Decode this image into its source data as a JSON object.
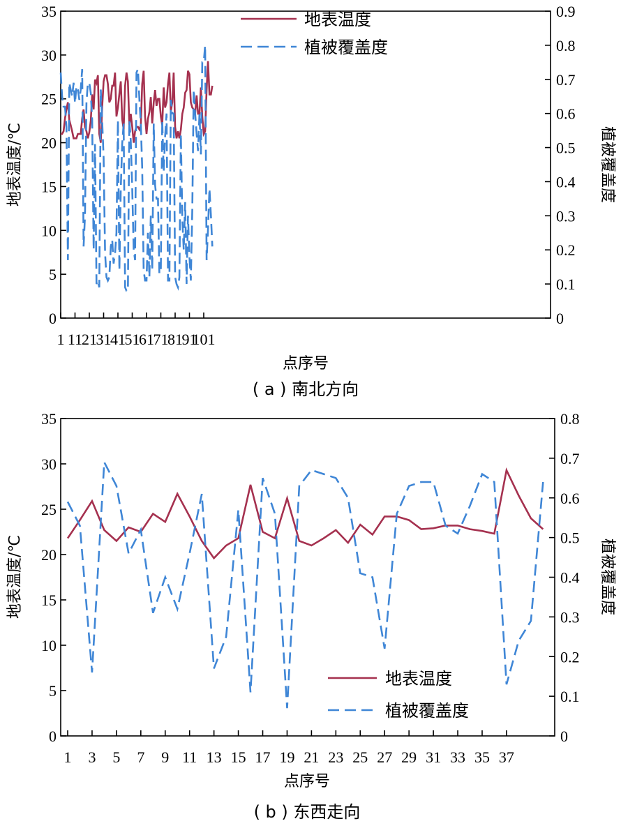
{
  "chart_data": [
    {
      "type": "line",
      "caption": "( a ) 南北方向",
      "xlabel": "点序号",
      "ylabel_left": "地表温度/℃",
      "ylabel_right": "植被覆盖度",
      "xlim": [
        1,
        107
      ],
      "ylim_left": [
        0,
        35
      ],
      "ylim_right": [
        0,
        0.9
      ],
      "xticks": [
        1,
        11,
        21,
        31,
        41,
        51,
        61,
        71,
        81,
        91,
        101
      ],
      "yticks_left": [
        0,
        5,
        10,
        15,
        20,
        25,
        30,
        35
      ],
      "yticks_right": [
        0,
        0.1,
        0.2,
        0.3,
        0.4,
        0.5,
        0.6,
        0.7,
        0.8,
        0.9
      ],
      "legend_position": "top-center",
      "colors": {
        "temperature": "#a5314f",
        "vegetation": "#3f86d6"
      },
      "series": [
        {
          "name": "地表温度",
          "axis": "left",
          "style": "solid",
          "values": [
            21.0,
            21.0,
            21.3,
            22.8,
            23.8,
            24.6,
            22.6,
            22.0,
            21.3,
            20.5,
            20.5,
            20.5,
            21.0,
            21.0,
            21.0,
            22.8,
            23.8,
            21.8,
            21.3,
            20.5,
            21.2,
            22.5,
            25.5,
            23.8,
            27.2,
            26.8,
            27.7,
            21.0,
            20.0,
            24.0,
            27.0,
            27.7,
            27.7,
            26.7,
            24.6,
            25.0,
            26.5,
            26.5,
            28.0,
            23.0,
            24.0,
            25.6,
            27.0,
            22.7,
            21.5,
            26.5,
            28.0,
            27.0,
            22.0,
            23.3,
            21.8,
            20.0,
            21.3,
            21.8,
            21.8,
            21.5,
            22.0,
            26.7,
            28.2,
            23.0,
            21.0,
            22.7,
            23.5,
            25.2,
            22.2,
            24.6,
            26.0,
            24.2,
            25.0,
            25.0,
            23.0,
            22.0,
            26.3,
            24.0,
            24.6,
            26.7,
            28.0,
            23.6,
            24.6,
            28.0,
            21.8,
            20.5,
            21.3,
            20.5,
            21.5,
            23.3,
            24.0,
            25.7,
            26.0,
            28.2,
            27.8,
            24.6,
            24.0,
            23.8,
            23.3,
            25.4,
            23.3,
            23.3,
            26.3,
            23.0,
            21.0,
            21.3,
            26.0,
            29.3,
            25.5,
            25.5,
            26.5
          ]
        },
        {
          "name": "植被覆盖度",
          "axis": "right",
          "style": "dashed",
          "values": [
            0.72,
            0.65,
            0.62,
            0.62,
            0.56,
            0.17,
            0.69,
            0.67,
            0.65,
            0.69,
            0.63,
            0.68,
            0.67,
            0.64,
            0.67,
            0.73,
            0.21,
            0.3,
            0.63,
            0.69,
            0.69,
            0.66,
            0.58,
            0.2,
            0.51,
            0.1,
            0.11,
            0.09,
            0.67,
            0.58,
            0.47,
            0.19,
            0.12,
            0.11,
            0.12,
            0.21,
            0.23,
            0.16,
            0.19,
            0.25,
            0.58,
            0.14,
            0.38,
            0.51,
            0.57,
            0.09,
            0.08,
            0.08,
            0.58,
            0.52,
            0.38,
            0.2,
            0.17,
            0.72,
            0.73,
            0.64,
            0.57,
            0.44,
            0.14,
            0.11,
            0.11,
            0.25,
            0.12,
            0.3,
            0.14,
            0.57,
            0.39,
            0.35,
            0.35,
            0.13,
            0.14,
            0.58,
            0.43,
            0.53,
            0.6,
            0.11,
            0.11,
            0.64,
            0.6,
            0.6,
            0.12,
            0.1,
            0.09,
            0.12,
            0.54,
            0.29,
            0.2,
            0.34,
            0.1,
            0.3,
            0.18,
            0.11,
            0.32,
            0.67,
            0.6,
            0.54,
            0.49,
            0.6,
            0.48,
            0.75,
            0.75,
            0.8,
            0.17,
            0.26,
            0.38,
            0.3,
            0.21
          ]
        }
      ]
    },
    {
      "type": "line",
      "caption": "( b ) 东西走向",
      "xlabel": "点序号",
      "ylabel_left": "地表温度/℃",
      "ylabel_right": "植被覆盖度",
      "xlim": [
        1,
        40
      ],
      "ylim_left": [
        0,
        35
      ],
      "ylim_right": [
        0,
        0.8
      ],
      "xticks": [
        1,
        3,
        5,
        7,
        9,
        11,
        13,
        15,
        17,
        19,
        21,
        23,
        25,
        27,
        29,
        31,
        33,
        35,
        37
      ],
      "yticks_left": [
        0,
        5,
        10,
        15,
        20,
        25,
        30,
        35
      ],
      "yticks_right": [
        0,
        0.1,
        0.2,
        0.3,
        0.4,
        0.5,
        0.6,
        0.7,
        0.8
      ],
      "legend_position": "bottom-center",
      "colors": {
        "temperature": "#a5314f",
        "vegetation": "#3f86d6"
      },
      "series": [
        {
          "name": "地表温度",
          "axis": "left",
          "style": "solid",
          "values": [
            21.8,
            23.8,
            25.9,
            22.7,
            21.5,
            23.0,
            22.5,
            24.5,
            23.6,
            26.7,
            24.2,
            21.5,
            19.6,
            21.0,
            21.8,
            27.7,
            22.5,
            21.8,
            26.2,
            21.5,
            21.0,
            21.8,
            22.7,
            21.3,
            23.3,
            22.2,
            24.2,
            24.2,
            23.8,
            22.8,
            22.9,
            23.2,
            23.2,
            22.8,
            22.6,
            22.3,
            29.3,
            26.5,
            24.0,
            22.8
          ]
        },
        {
          "name": "植被覆盖度",
          "axis": "right",
          "style": "dashed",
          "values": [
            0.59,
            0.53,
            0.16,
            0.69,
            0.63,
            0.46,
            0.52,
            0.31,
            0.4,
            0.32,
            0.46,
            0.61,
            0.17,
            0.25,
            0.57,
            0.11,
            0.65,
            0.56,
            0.07,
            0.63,
            0.67,
            0.66,
            0.65,
            0.6,
            0.41,
            0.4,
            0.22,
            0.56,
            0.63,
            0.64,
            0.64,
            0.53,
            0.51,
            0.58,
            0.66,
            0.64,
            0.13,
            0.24,
            0.29,
            0.64
          ]
        }
      ]
    }
  ]
}
